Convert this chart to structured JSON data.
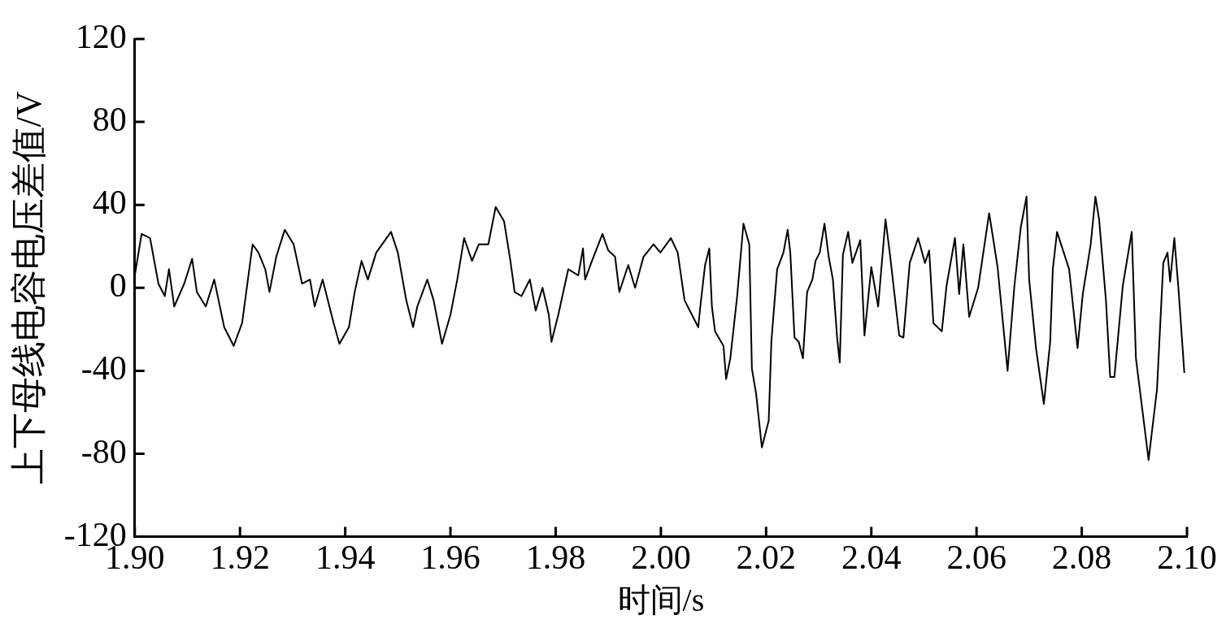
{
  "chart_data": {
    "type": "line",
    "xlabel": "时间/s",
    "ylabel": "上下母线电容电压差值/V",
    "xlim": [
      1.9,
      2.1
    ],
    "ylim": [
      -120,
      120
    ],
    "xticks": [
      {
        "value": 1.9,
        "label": "1.90"
      },
      {
        "value": 1.92,
        "label": "1.92"
      },
      {
        "value": 1.94,
        "label": "1.94"
      },
      {
        "value": 1.96,
        "label": "1.96"
      },
      {
        "value": 1.98,
        "label": "1.98"
      },
      {
        "value": 2.0,
        "label": "2.00"
      },
      {
        "value": 2.02,
        "label": "2.02"
      },
      {
        "value": 2.04,
        "label": "2.04"
      },
      {
        "value": 2.06,
        "label": "2.06"
      },
      {
        "value": 2.08,
        "label": "2.08"
      },
      {
        "value": 2.1,
        "label": "2.10"
      }
    ],
    "yticks": [
      -120,
      -80,
      -40,
      0,
      40,
      80,
      120
    ],
    "grid": false,
    "legend": false,
    "marker": "none",
    "line_style": "solid",
    "series": [
      {
        "color": "#000000",
        "x": [
          1.9,
          1.9013,
          1.9029,
          1.9045,
          1.9057,
          1.9065,
          1.9075,
          1.9094,
          1.9109,
          1.9118,
          1.9135,
          1.9151,
          1.917,
          1.9188,
          1.9204,
          1.9224,
          1.9235,
          1.9248,
          1.9256,
          1.9269,
          1.9285,
          1.9302,
          1.9318,
          1.9333,
          1.9342,
          1.9357,
          1.9378,
          1.9389,
          1.9407,
          1.9418,
          1.9431,
          1.9443,
          1.9459,
          1.9487,
          1.95,
          1.9516,
          1.9529,
          1.9537,
          1.9556,
          1.9568,
          1.9584,
          1.96,
          1.9613,
          1.9626,
          1.9641,
          1.9654,
          1.9672,
          1.9686,
          1.9702,
          1.9714,
          1.9722,
          1.9735,
          1.9751,
          1.9762,
          1.9775,
          1.9787,
          1.9792,
          1.9805,
          1.9824,
          1.9843,
          1.9852,
          1.9856,
          1.9869,
          1.9889,
          1.99,
          1.9913,
          1.9921,
          1.9938,
          1.9951,
          1.9967,
          1.9986,
          1.9999,
          2.0019,
          2.0032,
          2.0045,
          2.0059,
          2.0071,
          2.0075,
          2.0084,
          2.0092,
          2.0097,
          2.0103,
          2.0119,
          2.0124,
          2.0132,
          2.0145,
          2.0157,
          2.0168,
          2.0173,
          2.0181,
          2.0192,
          2.0205,
          2.021,
          2.0221,
          2.0233,
          2.0241,
          2.0246,
          2.0254,
          2.0262,
          2.027,
          2.0278,
          2.0288,
          2.0294,
          2.0302,
          2.0311,
          2.0319,
          2.0327,
          2.0335,
          2.034,
          2.0346,
          2.0356,
          2.0364,
          2.0379,
          2.0387,
          2.04,
          2.0413,
          2.0427,
          2.0435,
          2.0453,
          2.0461,
          2.0473,
          2.0489,
          2.0502,
          2.051,
          2.0518,
          2.0534,
          2.0543,
          2.0559,
          2.0567,
          2.0575,
          2.0586,
          2.0603,
          2.0624,
          2.064,
          2.0659,
          2.0672,
          2.0684,
          2.0695,
          2.07,
          2.0713,
          2.0728,
          2.074,
          2.0745,
          2.0753,
          2.0776,
          2.0792,
          2.0802,
          2.0817,
          2.0826,
          2.0833,
          2.0846,
          2.0854,
          2.0862,
          2.0878,
          2.0895,
          2.0903,
          2.0927,
          2.0943,
          2.0955,
          2.0963,
          2.0968,
          2.0976,
          2.0984,
          2.0995
        ],
        "values": [
          6,
          26,
          24,
          2,
          -4,
          9,
          -9,
          2,
          14,
          -2,
          -9,
          4,
          -19,
          -28,
          -17,
          21,
          17,
          9,
          -2,
          15,
          28,
          21,
          2,
          4,
          -9,
          4,
          -17,
          -27,
          -19,
          -2,
          13,
          4,
          17,
          27,
          17,
          -6,
          -19,
          -9,
          4,
          -6,
          -27,
          -13,
          4,
          24,
          13,
          21,
          21,
          39,
          32,
          13,
          -2,
          -4,
          4,
          -11,
          0,
          -13,
          -26,
          -13,
          9,
          6,
          19,
          4,
          13,
          26,
          18,
          15,
          -2,
          11,
          0,
          15,
          21,
          17,
          24,
          17,
          -6,
          -13,
          -19,
          -9,
          11,
          19,
          -9,
          -21,
          -28,
          -44,
          -34,
          -4,
          31,
          21,
          -39,
          -51,
          -77,
          -64,
          -26,
          9,
          17,
          28,
          17,
          -24,
          -26,
          -34,
          -2,
          4,
          13,
          17,
          31,
          15,
          4,
          -24,
          -36,
          16,
          27,
          12,
          23,
          -23,
          10,
          -9,
          33,
          17,
          -23,
          -24,
          12,
          24,
          12,
          18,
          -17,
          -21,
          1,
          24,
          -3,
          21,
          -14,
          0,
          36,
          10,
          -40,
          1,
          29,
          44,
          4,
          -29,
          -56,
          -26,
          9,
          27,
          9,
          -29,
          -3,
          21,
          44,
          33,
          -6,
          -43,
          -43,
          1,
          27,
          -34,
          -83,
          -49,
          12,
          17,
          3,
          24,
          -1,
          -41
        ]
      }
    ]
  }
}
